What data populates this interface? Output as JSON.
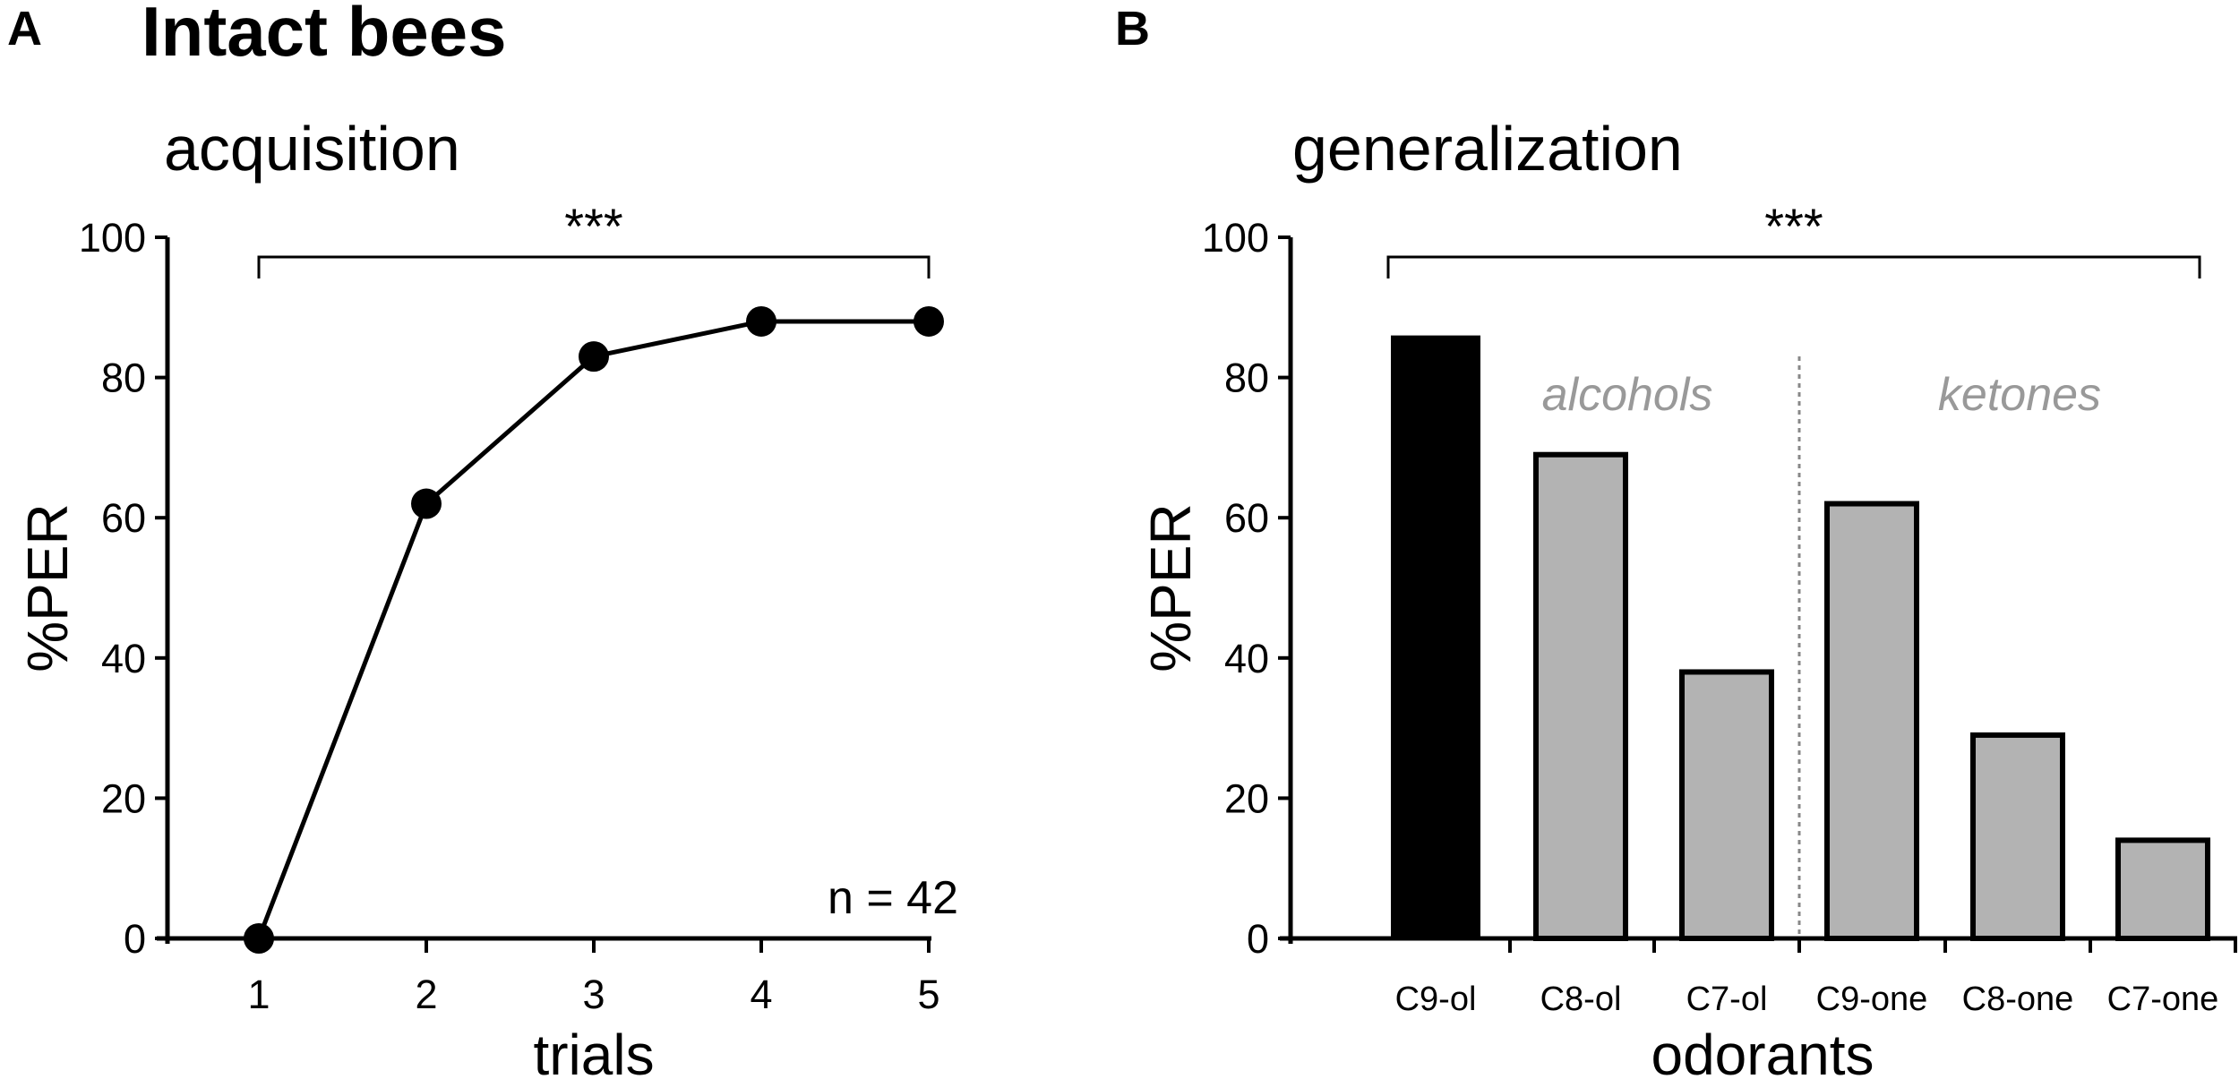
{
  "figure": {
    "panel_a_letter": "A",
    "panel_b_letter": "B",
    "main_title": "Intact bees"
  },
  "chart_data": [
    {
      "type": "line",
      "title": "acquisition",
      "xlabel": "trials",
      "ylabel": "%PER",
      "x": [
        1,
        2,
        3,
        4,
        5
      ],
      "xticks": [
        "1",
        "2",
        "3",
        "4",
        "5"
      ],
      "series": [
        {
          "name": "Intact bees",
          "values": [
            0,
            62,
            83,
            88,
            88
          ]
        }
      ],
      "ylim": [
        0,
        100
      ],
      "yticks": [
        "0",
        "20",
        "40",
        "60",
        "80",
        "100"
      ],
      "grid": false,
      "annotations": {
        "significance": "***",
        "sample_size": "n = 42"
      },
      "color": "#000000"
    },
    {
      "type": "bar",
      "title": "generalization",
      "xlabel": "odorants",
      "ylabel": "%PER",
      "categories": [
        "C9-ol",
        "C8-ol",
        "C7-ol",
        "C9-one",
        "C8-one",
        "C7-one"
      ],
      "values": [
        86,
        69,
        38,
        62,
        29,
        14
      ],
      "bar_colors": [
        "#000000",
        "#b3b3b3",
        "#b3b3b3",
        "#b3b3b3",
        "#b3b3b3",
        "#b3b3b3"
      ],
      "ylim": [
        0,
        100
      ],
      "yticks": [
        "0",
        "20",
        "40",
        "60",
        "80",
        "100"
      ],
      "grid": false,
      "groups": [
        "alcohols",
        "ketones"
      ],
      "annotations": {
        "significance": "***"
      }
    }
  ]
}
